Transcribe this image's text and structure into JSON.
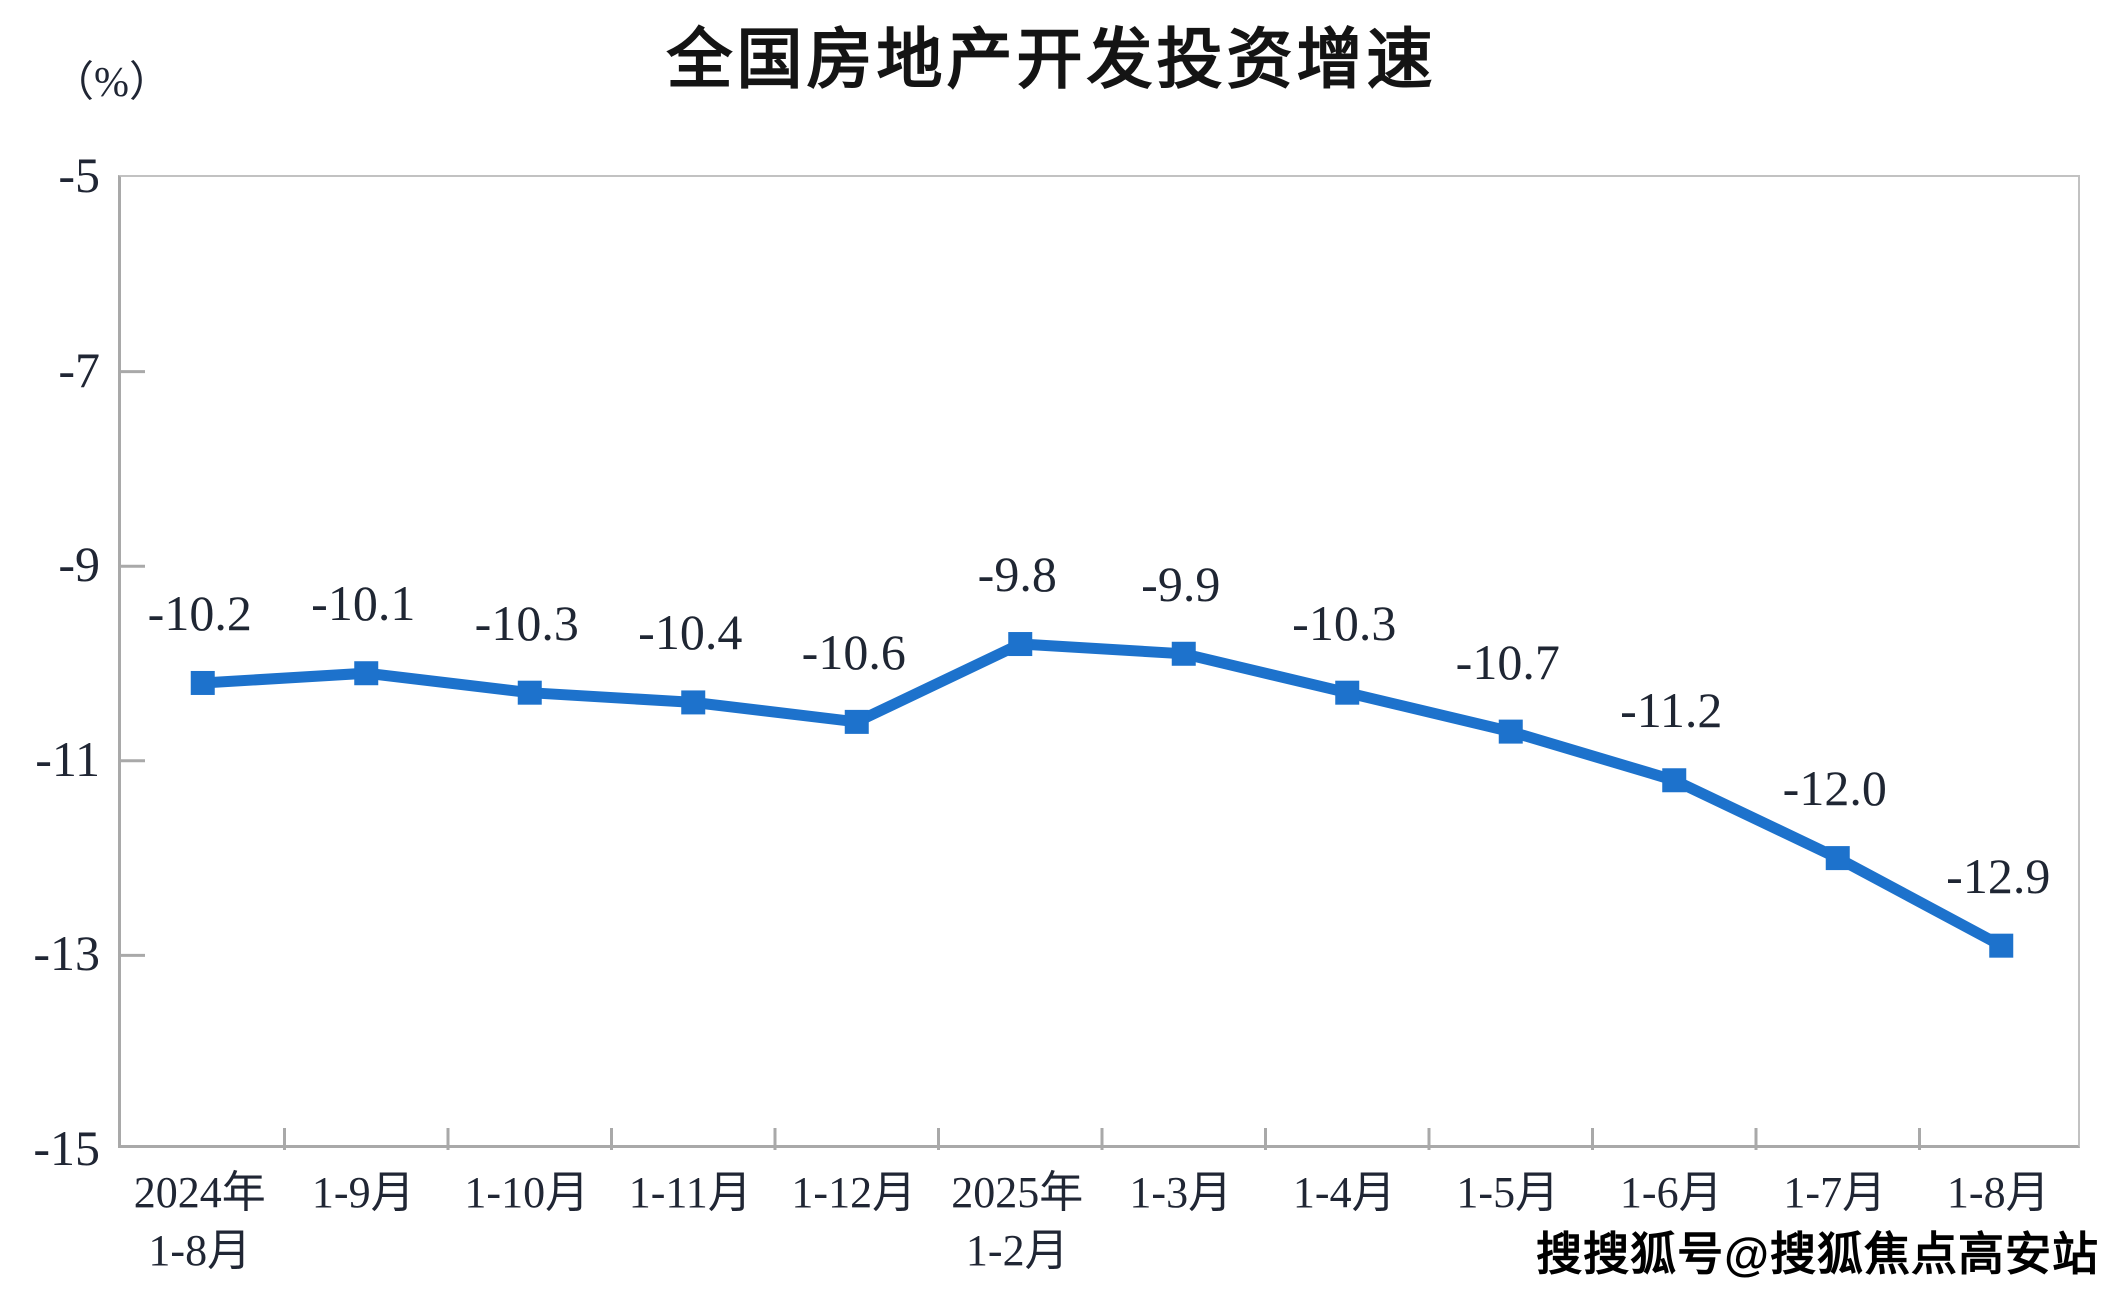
{
  "title": "全国房地产开发投资增速",
  "unit_label": "（%）",
  "watermark": "搜搜狐号@搜狐焦点高安站",
  "colors": {
    "line": "#1d72cc",
    "marker": "#1d72cc",
    "axis": "#a9a9a9",
    "text": "#202634"
  },
  "chart_data": {
    "type": "line",
    "title": "全国房地产开发投资增速",
    "ylabel": "（%）",
    "ylim": [
      -15,
      -5
    ],
    "yticks": [
      -5,
      -7,
      -9,
      -11,
      -13,
      -15
    ],
    "grid": false,
    "legend_position": "none",
    "marker_shape": "square",
    "categories": [
      "2024年\n1-8月",
      "1-9月",
      "1-10月",
      "1-11月",
      "1-12月",
      "2025年\n1-2月",
      "1-3月",
      "1-4月",
      "1-5月",
      "1-6月",
      "1-7月",
      "1-8月"
    ],
    "series": [
      {
        "name": "全国房地产开发投资增速",
        "values": [
          -10.2,
          -10.1,
          -10.3,
          -10.4,
          -10.6,
          -9.8,
          -9.9,
          -10.3,
          -10.7,
          -11.2,
          -12.0,
          -12.9
        ]
      }
    ],
    "data_labels": [
      "-10.2",
      "-10.1",
      "-10.3",
      "-10.4",
      "-10.6",
      "-9.8",
      "-9.9",
      "-10.3",
      "-10.7",
      "-11.2",
      "-12.0",
      "-12.9"
    ]
  }
}
